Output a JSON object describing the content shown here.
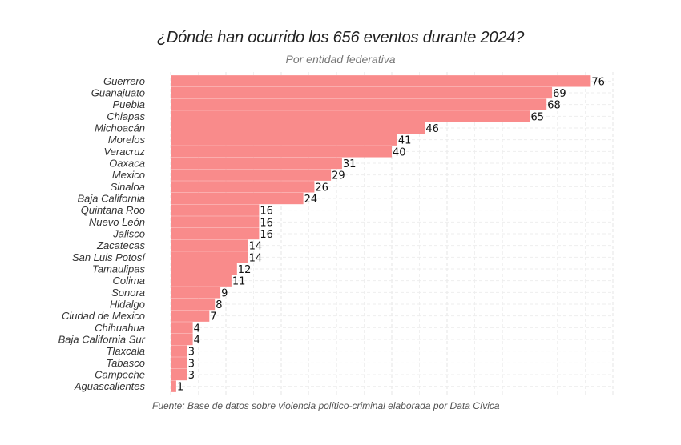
{
  "chart_data": {
    "type": "bar",
    "orientation": "horizontal",
    "title": "¿Dónde han ocurrido los 656 eventos durante 2024?",
    "subtitle": "Por entidad federativa",
    "caption": "Fuente: Base de datos sobre violencia político-criminal elaborada por Data Cívica",
    "categories": [
      "Guerrero",
      "Guanajuato",
      "Puebla",
      "Chiapas",
      "Michoacán",
      "Morelos",
      "Veracruz",
      "Oaxaca",
      "Mexico",
      "Sinaloa",
      "Baja California",
      "Quintana Roo",
      "Nuevo León",
      "Jalisco",
      "Zacatecas",
      "San Luis Potosí",
      "Tamaulipas",
      "Colima",
      "Sonora",
      "Hidalgo",
      "Ciudad de Mexico",
      "Chihuahua",
      "Baja California Sur",
      "Tlaxcala",
      "Tabasco",
      "Campeche",
      "Aguascalientes"
    ],
    "values": [
      76,
      69,
      68,
      65,
      46,
      41,
      40,
      31,
      29,
      26,
      24,
      16,
      16,
      16,
      14,
      14,
      12,
      11,
      9,
      8,
      7,
      4,
      4,
      3,
      3,
      3,
      1
    ],
    "xlim": [
      0,
      80
    ],
    "grid": true,
    "legend": "none",
    "bar_color": "#f98b8b",
    "grid_color": "#e6e6e6"
  }
}
